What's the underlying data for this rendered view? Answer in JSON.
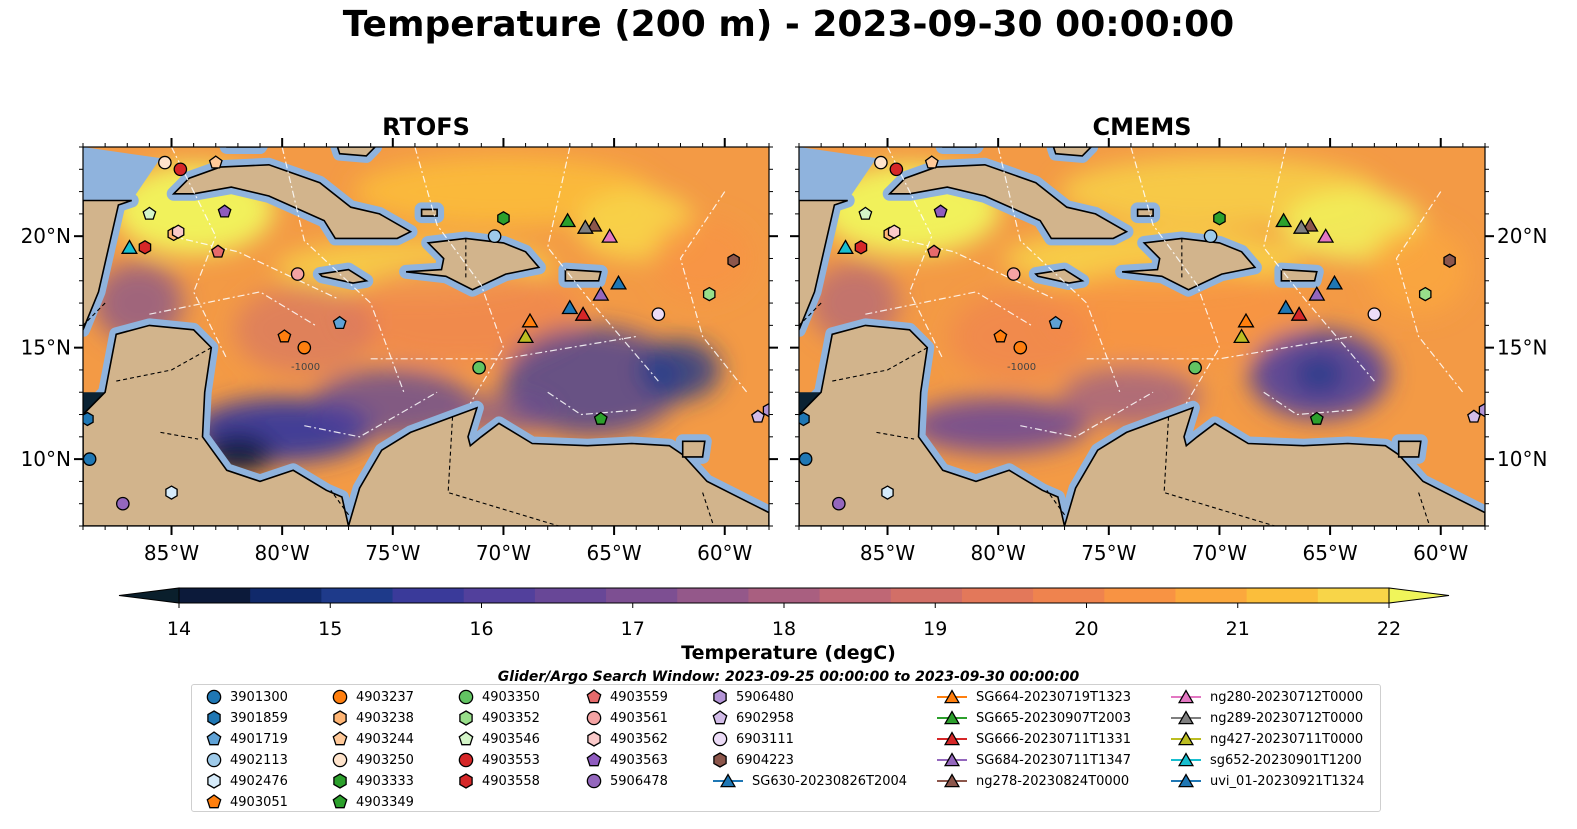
{
  "title": "Temperature (200 m) - 2023-09-30 00:00:00",
  "panels": [
    {
      "title": "RTOFS"
    },
    {
      "title": "CMEMS"
    }
  ],
  "colorbar": {
    "label": "Temperature (degC)",
    "ticks": [
      "14",
      "15",
      "16",
      "17",
      "18",
      "19",
      "20",
      "21",
      "22"
    ],
    "vmin": 14,
    "vmax": 22,
    "step": 0.5,
    "colors": [
      "#0c1a3a",
      "#10296a",
      "#1e3a8a",
      "#3a3a9a",
      "#52409c",
      "#684797",
      "#7d4f92",
      "#94588a",
      "#a95f80",
      "#bf6775",
      "#d26f67",
      "#e3785a",
      "#ef834e",
      "#f89343",
      "#fba83d",
      "#fbbe3b",
      "#f8d548"
    ],
    "under_color": "#0a1f2c",
    "over_color": "#f0f55a"
  },
  "search_window": "Glider/Argo Search Window: 2023-09-25 00:00:00 to 2023-09-30 00:00:00",
  "chart_data": {
    "type": "map",
    "variable": "Temperature",
    "units": "degC",
    "depth": "200 m",
    "time": "2023-09-30 00:00:00",
    "lon_ticks": [
      "85°W",
      "80°W",
      "75°W",
      "70°W",
      "65°W",
      "60°W"
    ],
    "lat_ticks": [
      "20°N",
      "15°N",
      "10°N"
    ],
    "lon_range": [
      -89,
      -58
    ],
    "lat_range": [
      7,
      24
    ],
    "contour_label": "-1000",
    "platforms": [
      {
        "id": "3901300",
        "marker": "circle",
        "color": "#1f77b4",
        "lon": -88.7,
        "lat": 10.0
      },
      {
        "id": "3901859",
        "marker": "hexagon",
        "color": "#1f77b4",
        "lon": -88.8,
        "lat": 11.8
      },
      {
        "id": "4901719",
        "marker": "pentagon",
        "color": "#5fa2d6",
        "lon": -77.4,
        "lat": 16.1
      },
      {
        "id": "4902113",
        "marker": "circle",
        "color": "#9ecae9",
        "lon": -70.4,
        "lat": 20.0
      },
      {
        "id": "4902476",
        "marker": "hexagon",
        "color": "#d6ebfa",
        "lon": -85.0,
        "lat": 8.5
      },
      {
        "id": "4903051",
        "marker": "pentagon",
        "color": "#ff7f0e",
        "lon": -79.9,
        "lat": 15.5
      },
      {
        "id": "4903237",
        "marker": "circle",
        "color": "#ff7f0e",
        "lon": -79.0,
        "lat": 15.0
      },
      {
        "id": "4903238",
        "marker": "hexagon",
        "color": "#ffb574",
        "lon": -84.9,
        "lat": 20.1
      },
      {
        "id": "4903244",
        "marker": "pentagon",
        "color": "#ffc999",
        "lon": -83.0,
        "lat": 23.3
      },
      {
        "id": "4903250",
        "marker": "circle",
        "color": "#ffe4cc",
        "lon": -85.3,
        "lat": 23.3
      },
      {
        "id": "4903333",
        "marker": "hexagon",
        "color": "#2ca02c",
        "lon": -70.0,
        "lat": 20.8
      },
      {
        "id": "4903349",
        "marker": "pentagon",
        "color": "#2ca02c",
        "lon": -65.6,
        "lat": 11.8
      },
      {
        "id": "4903350",
        "marker": "circle",
        "color": "#62c462",
        "lon": -71.1,
        "lat": 14.1
      },
      {
        "id": "4903352",
        "marker": "hexagon",
        "color": "#98df8a",
        "lon": -60.7,
        "lat": 17.4
      },
      {
        "id": "4903546",
        "marker": "pentagon",
        "color": "#d4f5c8",
        "lon": -86.0,
        "lat": 21.0
      },
      {
        "id": "4903553",
        "marker": "circle",
        "color": "#d62728",
        "lon": -84.6,
        "lat": 23.0
      },
      {
        "id": "4903558",
        "marker": "hexagon",
        "color": "#d62728",
        "lon": -86.2,
        "lat": 19.5
      },
      {
        "id": "4903559",
        "marker": "pentagon",
        "color": "#e66a6b",
        "lon": -82.9,
        "lat": 19.3
      },
      {
        "id": "4903561",
        "marker": "circle",
        "color": "#f4a3a3",
        "lon": -79.3,
        "lat": 18.3
      },
      {
        "id": "4903562",
        "marker": "hexagon",
        "color": "#fac9c9",
        "lon": -84.7,
        "lat": 20.2
      },
      {
        "id": "4903563",
        "marker": "pentagon",
        "color": "#8f5bbf",
        "lon": -82.6,
        "lat": 21.1
      },
      {
        "id": "5906478",
        "marker": "circle",
        "color": "#9467bd",
        "lon": -87.2,
        "lat": 8.0
      },
      {
        "id": "5906480",
        "marker": "hexagon",
        "color": "#b394d6",
        "lon": -58.0,
        "lat": 12.2
      },
      {
        "id": "6902958",
        "marker": "pentagon",
        "color": "#d2bce8",
        "lon": -58.5,
        "lat": 11.9
      },
      {
        "id": "6903111",
        "marker": "circle",
        "color": "#ecdcf7",
        "lon": -63.0,
        "lat": 16.5
      },
      {
        "id": "6904223",
        "marker": "hexagon",
        "color": "#8c564b",
        "lon": -59.6,
        "lat": 18.9
      },
      {
        "id": "SG630-20230826T2004",
        "marker": "triangle",
        "color": "#1f77b4",
        "lon": -64.8,
        "lat": 17.9
      },
      {
        "id": "SG664-20230719T1323",
        "marker": "triangle",
        "color": "#ff7f0e",
        "lon": -68.8,
        "lat": 16.2
      },
      {
        "id": "SG665-20230907T2003",
        "marker": "triangle",
        "color": "#2ca02c",
        "lon": -67.1,
        "lat": 20.7
      },
      {
        "id": "SG666-20230711T1331",
        "marker": "triangle",
        "color": "#d62728",
        "lon": -66.4,
        "lat": 16.5
      },
      {
        "id": "SG684-20230711T1347",
        "marker": "triangle",
        "color": "#9467bd",
        "lon": -65.6,
        "lat": 17.4
      },
      {
        "id": "ng278-20230824T0000",
        "marker": "triangle",
        "color": "#8c564b",
        "lon": -65.9,
        "lat": 20.5
      },
      {
        "id": "ng280-20230712T0000",
        "marker": "triangle",
        "color": "#e377c2",
        "lon": -65.2,
        "lat": 20.0
      },
      {
        "id": "ng289-20230712T0000",
        "marker": "triangle",
        "color": "#7f7f7f",
        "lon": -66.3,
        "lat": 20.4
      },
      {
        "id": "ng427-20230711T0000",
        "marker": "triangle",
        "color": "#bcbd22",
        "lon": -69.0,
        "lat": 15.5
      },
      {
        "id": "sg652-20230901T1200",
        "marker": "triangle",
        "color": "#17becf",
        "lon": -86.9,
        "lat": 19.5
      },
      {
        "id": "uvi_01-20230921T1324",
        "marker": "triangle",
        "color": "#1f77b4",
        "lon": -67.0,
        "lat": 16.8
      }
    ]
  },
  "legend": {
    "columns": [
      [
        {
          "label": "3901300",
          "marker": "circle",
          "color": "#1f77b4"
        },
        {
          "label": "3901859",
          "marker": "hexagon",
          "color": "#1f77b4"
        },
        {
          "label": "4901719",
          "marker": "pentagon",
          "color": "#5fa2d6"
        },
        {
          "label": "4902113",
          "marker": "circle",
          "color": "#9ecae9"
        },
        {
          "label": "4902476",
          "marker": "hexagon",
          "color": "#d6ebfa"
        },
        {
          "label": "4903051",
          "marker": "pentagon",
          "color": "#ff7f0e"
        }
      ],
      [
        {
          "label": "4903237",
          "marker": "circle",
          "color": "#ff7f0e"
        },
        {
          "label": "4903238",
          "marker": "hexagon",
          "color": "#ffb574"
        },
        {
          "label": "4903244",
          "marker": "pentagon",
          "color": "#ffc999"
        },
        {
          "label": "4903250",
          "marker": "circle",
          "color": "#ffe4cc"
        },
        {
          "label": "4903333",
          "marker": "hexagon",
          "color": "#2ca02c"
        },
        {
          "label": "4903349",
          "marker": "pentagon",
          "color": "#2ca02c"
        }
      ],
      [
        {
          "label": "4903350",
          "marker": "circle",
          "color": "#62c462"
        },
        {
          "label": "4903352",
          "marker": "hexagon",
          "color": "#98df8a"
        },
        {
          "label": "4903546",
          "marker": "pentagon",
          "color": "#d4f5c8"
        },
        {
          "label": "4903553",
          "marker": "circle",
          "color": "#d62728"
        },
        {
          "label": "4903558",
          "marker": "hexagon",
          "color": "#d62728"
        }
      ],
      [
        {
          "label": "4903559",
          "marker": "pentagon",
          "color": "#e66a6b"
        },
        {
          "label": "4903561",
          "marker": "circle",
          "color": "#f4a3a3"
        },
        {
          "label": "4903562",
          "marker": "hexagon",
          "color": "#fac9c9"
        },
        {
          "label": "4903563",
          "marker": "pentagon",
          "color": "#8f5bbf"
        },
        {
          "label": "5906478",
          "marker": "circle",
          "color": "#9467bd"
        }
      ],
      [
        {
          "label": "5906480",
          "marker": "hexagon",
          "color": "#b394d6"
        },
        {
          "label": "6902958",
          "marker": "pentagon",
          "color": "#d2bce8"
        },
        {
          "label": "6903111",
          "marker": "circle",
          "color": "#ecdcf7"
        },
        {
          "label": "6904223",
          "marker": "hexagon",
          "color": "#8c564b"
        },
        {
          "label": "SG630-20230826T2004",
          "marker": "triangle-line",
          "color": "#1f77b4"
        }
      ],
      [
        {
          "label": "SG664-20230719T1323",
          "marker": "triangle-line",
          "color": "#ff7f0e"
        },
        {
          "label": "SG665-20230907T2003",
          "marker": "triangle-line",
          "color": "#2ca02c"
        },
        {
          "label": "SG666-20230711T1331",
          "marker": "triangle-line",
          "color": "#d62728"
        },
        {
          "label": "SG684-20230711T1347",
          "marker": "triangle-line",
          "color": "#9467bd"
        },
        {
          "label": "ng278-20230824T0000",
          "marker": "triangle-line",
          "color": "#8c564b"
        }
      ],
      [
        {
          "label": "ng280-20230712T0000",
          "marker": "triangle-line",
          "color": "#e377c2"
        },
        {
          "label": "ng289-20230712T0000",
          "marker": "triangle-line",
          "color": "#7f7f7f"
        },
        {
          "label": "ng427-20230711T0000",
          "marker": "triangle-line",
          "color": "#bcbd22"
        },
        {
          "label": "sg652-20230901T1200",
          "marker": "triangle-line",
          "color": "#17becf"
        },
        {
          "label": "uvi_01-20230921T1324",
          "marker": "triangle-line",
          "color": "#1f77b4"
        }
      ]
    ]
  }
}
